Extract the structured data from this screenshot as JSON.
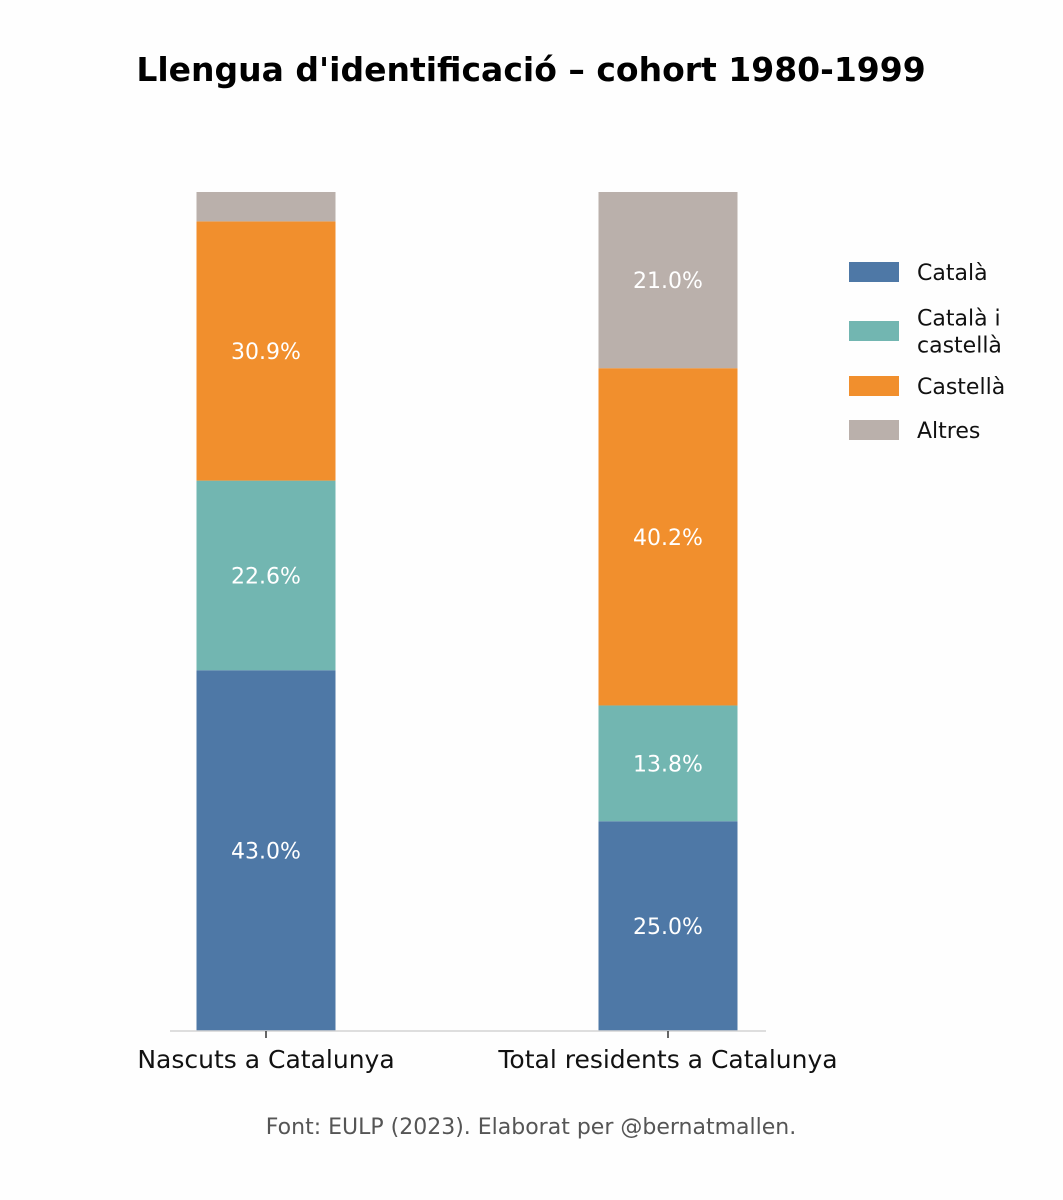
{
  "chart_data": {
    "type": "bar",
    "stacked": true,
    "title": "Llengua d'identificació – cohort 1980-1999",
    "xlabel": "",
    "ylabel": "",
    "ylim": [
      0,
      100
    ],
    "grid": false,
    "legend_position": "right",
    "categories": [
      "Nascuts a Catalunya",
      "Total residents a Catalunya"
    ],
    "series": [
      {
        "name": "Català",
        "color": "#4e78a6",
        "values": [
          43.0,
          25.0
        ],
        "labels": [
          "43.0%",
          "25.0%"
        ]
      },
      {
        "name": "Català i castellà",
        "legend_lines": [
          "Català i",
          "castellà"
        ],
        "color": "#72b6b1",
        "values": [
          22.6,
          13.8
        ],
        "labels": [
          "22.6%",
          "13.8%"
        ]
      },
      {
        "name": "Castellà",
        "color": "#f18f2d",
        "values": [
          30.9,
          40.2
        ],
        "labels": [
          "30.9%",
          "40.2%"
        ]
      },
      {
        "name": "Altres",
        "color": "#bab0ab",
        "values": [
          3.5,
          21.0
        ],
        "labels": [
          "",
          "21.0%"
        ]
      }
    ],
    "source": "Font: EULP (2023). Elaborat per @bernatmallen."
  }
}
